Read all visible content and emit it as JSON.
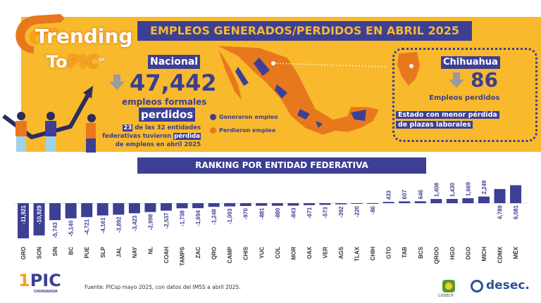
{
  "brand": {
    "logo_text_1": "Trending",
    "logo_text_2": "To",
    "logo_text_3": "PIC",
    "logo_sup": "SP"
  },
  "header": {
    "title": "EMPLEOS GENERADOS/PERDIDOS EN ABRIL 2025"
  },
  "national": {
    "label": "Nacional",
    "value": "47,442",
    "line1": "empleos formales",
    "line2": "perdidos",
    "note_num": "23",
    "note_a": " de las 32 entidades",
    "note_b": "federativas tuvieron ",
    "note_hl": "pérdida",
    "note_c": "de empleos en abril 2025"
  },
  "legend": {
    "generated": "Generaron empleo",
    "lost": "Perdieron empleo"
  },
  "chihuahua": {
    "label": "Chihuahua",
    "value": "86",
    "sub": "Empleos perdidos",
    "note1": "Estado con menor pérdida",
    "note2": "de plazas laborales"
  },
  "ranking": {
    "title": "RANKING POR ENTIDAD FEDERATIVA"
  },
  "footer": {
    "source": "Fuente: PICsp mayo 2025, con datos del IMSS a abril 2025.",
    "logo_pic": "PIC",
    "logo_pic_sub": "CHIHUAHUA",
    "logo_codech": "CODECH",
    "logo_desec": "desec."
  },
  "colors": {
    "blue": "#3d3f94",
    "yellow": "#f8b92c",
    "orange": "#e8781e",
    "gray": "#9a9aa0"
  },
  "chart_data": {
    "type": "bar",
    "title": "RANKING POR ENTIDAD FEDERATIVA",
    "categories": [
      "GRO",
      "SON",
      "SIN",
      "BC",
      "PUE",
      "SLP",
      "JAL",
      "NAY",
      "NL",
      "COAH",
      "TAMPS",
      "ZAC",
      "QRO",
      "CAMP",
      "CHIS",
      "YUC",
      "COL",
      "MOR",
      "OAX",
      "VER",
      "AGS",
      "TLAX",
      "CHIH",
      "GTO",
      "TAB",
      "BCS",
      "QROO",
      "HGO",
      "DGO",
      "MICH",
      "CDMX",
      "MÉX"
    ],
    "values": [
      -11921,
      -10929,
      -5743,
      -5140,
      -4721,
      -4161,
      -3892,
      -3423,
      -2998,
      -2537,
      -1738,
      -1694,
      -1248,
      -1093,
      -970,
      -881,
      -880,
      -843,
      -671,
      -573,
      -392,
      -220,
      -86,
      433,
      607,
      646,
      1408,
      1430,
      1669,
      2249,
      4789,
      6081
    ],
    "labels": [
      "-11,921",
      "-10,929",
      "-5,743",
      "-5,140",
      "-4,721",
      "-4,161",
      "-3,892",
      "-3,423",
      "-2,998",
      "-2,537",
      "-1,738",
      "-1,694",
      "-1,248",
      "-1,093",
      "-970",
      "-881",
      "-880",
      "-843",
      "-671",
      "-573",
      "-392",
      "-220",
      "-86",
      "433",
      "607",
      "646",
      "1,408",
      "1,430",
      "1,669",
      "2,249",
      "4,789",
      "6,081"
    ],
    "grid": false
  }
}
